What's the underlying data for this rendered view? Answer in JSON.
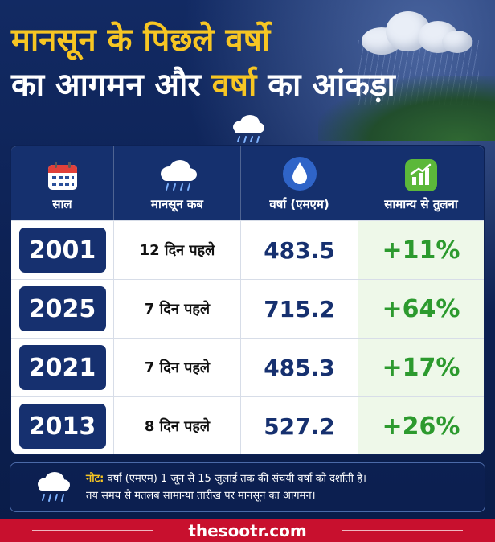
{
  "header": {
    "title_line1": "मानसून के पिछले वर्षो",
    "title_line2_part1": "का आगमन और ",
    "title_line2_highlight": "वर्षा",
    "title_line2_part2": " का आंकड़ा",
    "highlight_color": "#f7c623"
  },
  "table": {
    "headers": [
      {
        "label": "साल",
        "icon": "calendar-icon"
      },
      {
        "label": "मानसून कब",
        "icon": "rain-cloud-icon"
      },
      {
        "label": "वर्षा (एमएम)",
        "icon": "water-drop-icon"
      },
      {
        "label": "सामान्य से तुलना",
        "icon": "bar-chart-icon"
      }
    ],
    "rows": [
      {
        "year": "2001",
        "when": "12 दिन पहले",
        "rainfall": "483.5",
        "compare": "+11%"
      },
      {
        "year": "2025",
        "when": "7 दिन पहले",
        "rainfall": "715.2",
        "compare": "+64%"
      },
      {
        "year": "2021",
        "when": "7 दिन पहले",
        "rainfall": "485.3",
        "compare": "+17%"
      },
      {
        "year": "2013",
        "when": "8 दिन पहले",
        "rainfall": "527.2",
        "compare": "+26%"
      }
    ]
  },
  "note": {
    "label": "नोट:",
    "line1": " वर्षा (एमएम) 1 जून से 15 जुलाई तक की संचयी वर्षा को दर्शाती है।",
    "line2": "तय समय से मतलब सामान्या तारीख पर मानसून का आगमन।",
    "icon": "rain-cloud-icon"
  },
  "footer": {
    "site": "thesootr.com",
    "color": "#c8102e"
  }
}
